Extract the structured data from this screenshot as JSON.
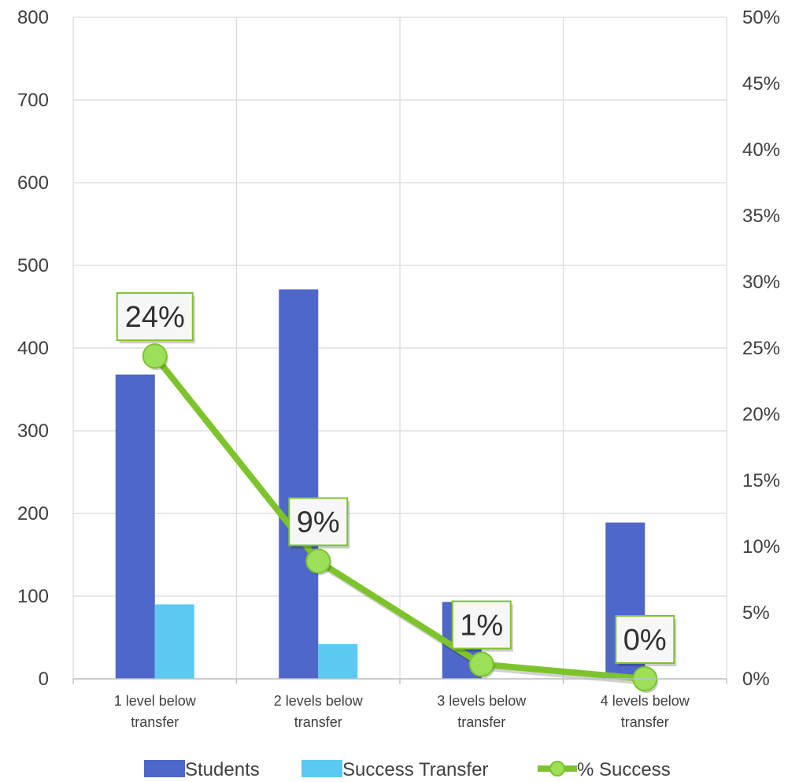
{
  "chart_data": {
    "type": "bar",
    "categories": [
      [
        "1 level below",
        "transfer"
      ],
      [
        "2 levels below",
        "transfer"
      ],
      [
        "3 levels below",
        "transfer"
      ],
      [
        "4 levels below",
        "transfer"
      ]
    ],
    "series": [
      {
        "name": "Students",
        "type": "bar",
        "axis": "left",
        "color": "#4F67C9",
        "values": [
          368,
          471,
          93,
          189
        ]
      },
      {
        "name": "Success Transfer",
        "type": "bar",
        "axis": "left",
        "color": "#5BC9F2",
        "values": [
          90,
          42,
          0,
          0
        ]
      },
      {
        "name": "% Success",
        "type": "line",
        "axis": "right",
        "color": "#7DC42C",
        "marker_color": "#9CE05A",
        "values": [
          0.244,
          0.089,
          0.011,
          0.0
        ],
        "data_labels": [
          "24%",
          "9%",
          "1%",
          "0%"
        ]
      }
    ],
    "y_left": {
      "min": 0,
      "max": 800,
      "step": 100,
      "tick_labels": [
        "0",
        "100",
        "200",
        "300",
        "400",
        "500",
        "600",
        "700",
        "800"
      ]
    },
    "y_right": {
      "min": 0,
      "max": 0.5,
      "step": 0.05,
      "tick_labels": [
        "0%",
        "5%",
        "10%",
        "15%",
        "20%",
        "25%",
        "30%",
        "35%",
        "40%",
        "45%",
        "50%"
      ]
    },
    "grid": true,
    "legend": {
      "position": "bottom",
      "entries": [
        "Students",
        "Success Transfer",
        "% Success"
      ]
    },
    "title": "",
    "xlabel": "",
    "ylabel": ""
  }
}
